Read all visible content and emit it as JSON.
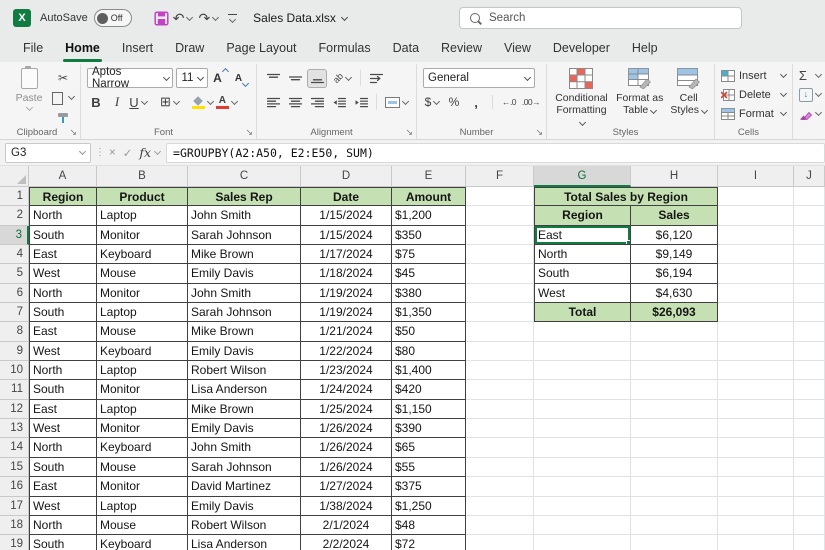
{
  "titlebar": {
    "autosave_label": "AutoSave",
    "autosave_state": "Off",
    "document_title": "Sales Data.xlsx",
    "search_placeholder": "Search"
  },
  "menu": {
    "tabs": [
      "File",
      "Home",
      "Insert",
      "Draw",
      "Page Layout",
      "Formulas",
      "Data",
      "Review",
      "View",
      "Developer",
      "Help"
    ],
    "active": "Home"
  },
  "glyphs": {
    "app_letter": "X",
    "undo": "↶",
    "redo": "↷",
    "cut": "✂",
    "sum": "Σ",
    "bold": "B",
    "italic": "I",
    "underline": "U",
    "borders": "⊞",
    "dollar": "$",
    "percent": "%",
    "comma": ",",
    "inc_decimal": "←.0",
    "dec_decimal": ".00→",
    "font_letter": "A",
    "orientation_ab": "ab",
    "fill_arrow": "↓",
    "cancel": "×",
    "enter": "✓",
    "fx": "fx",
    "dots": "⋮",
    "launcher": "↘"
  },
  "ribbon": {
    "clipboard": {
      "label": "Clipboard",
      "paste_label": "Paste"
    },
    "font": {
      "label": "Font",
      "font_name": "Aptos Narrow",
      "font_size": "11"
    },
    "alignment": {
      "label": "Alignment"
    },
    "number": {
      "label": "Number",
      "format": "General"
    },
    "styles": {
      "label": "Styles",
      "buttons": [
        "Conditional Formatting",
        "Format as Table",
        "Cell Styles"
      ]
    },
    "cells": {
      "label": "Cells",
      "buttons": [
        "Insert",
        "Delete",
        "Format"
      ]
    }
  },
  "formula_bar": {
    "name_box": "G3",
    "formula": "=GROUPBY(A2:A50, E2:E50, SUM)"
  },
  "sheet": {
    "columns": [
      "A",
      "B",
      "C",
      "D",
      "E",
      "F",
      "G",
      "H",
      "I",
      "J"
    ],
    "selected_column": "G",
    "selected_row": 3,
    "active_cell": "G3",
    "data_table": {
      "headers": [
        "Region",
        "Product",
        "Sales Rep",
        "Date",
        "Amount"
      ],
      "rows": [
        [
          "North",
          "Laptop",
          "John Smith",
          "1/15/2024",
          "$1,200"
        ],
        [
          "South",
          "Monitor",
          "Sarah Johnson",
          "1/15/2024",
          "$350"
        ],
        [
          "East",
          "Keyboard",
          "Mike Brown",
          "1/17/2024",
          "$75"
        ],
        [
          "West",
          "Mouse",
          "Emily Davis",
          "1/18/2024",
          "$45"
        ],
        [
          "North",
          "Monitor",
          "John Smith",
          "1/19/2024",
          "$380"
        ],
        [
          "South",
          "Laptop",
          "Sarah Johnson",
          "1/19/2024",
          "$1,350"
        ],
        [
          "East",
          "Mouse",
          "Mike Brown",
          "1/21/2024",
          "$50"
        ],
        [
          "West",
          "Keyboard",
          "Emily Davis",
          "1/22/2024",
          "$80"
        ],
        [
          "North",
          "Laptop",
          "Robert Wilson",
          "1/23/2024",
          "$1,400"
        ],
        [
          "South",
          "Monitor",
          "Lisa Anderson",
          "1/24/2024",
          "$420"
        ],
        [
          "East",
          "Laptop",
          "Mike Brown",
          "1/25/2024",
          "$1,150"
        ],
        [
          "West",
          "Monitor",
          "Emily Davis",
          "1/26/2024",
          "$390"
        ],
        [
          "North",
          "Keyboard",
          "John Smith",
          "1/26/2024",
          "$65"
        ],
        [
          "South",
          "Mouse",
          "Sarah Johnson",
          "1/26/2024",
          "$55"
        ],
        [
          "East",
          "Monitor",
          "David Martinez",
          "1/27/2024",
          "$375"
        ],
        [
          "West",
          "Laptop",
          "Emily Davis",
          "1/38/2024",
          "$1,250"
        ],
        [
          "North",
          "Mouse",
          "Robert Wilson",
          "2/1/2024",
          "$48"
        ],
        [
          "South",
          "Keyboard",
          "Lisa Anderson",
          "2/2/2024",
          "$72"
        ]
      ]
    },
    "summary_table": {
      "title": "Total Sales by Region",
      "headers": [
        "Region",
        "Sales"
      ],
      "rows": [
        [
          "East",
          "$6,120"
        ],
        [
          "North",
          "$9,149"
        ],
        [
          "South",
          "$6,194"
        ],
        [
          "West",
          "$4,630"
        ]
      ],
      "total_label": "Total",
      "total_value": "$26,093"
    },
    "colors": {
      "header_fill": "#C5E0B3",
      "excel_green": "#107C41",
      "table_border": "#404040"
    }
  }
}
